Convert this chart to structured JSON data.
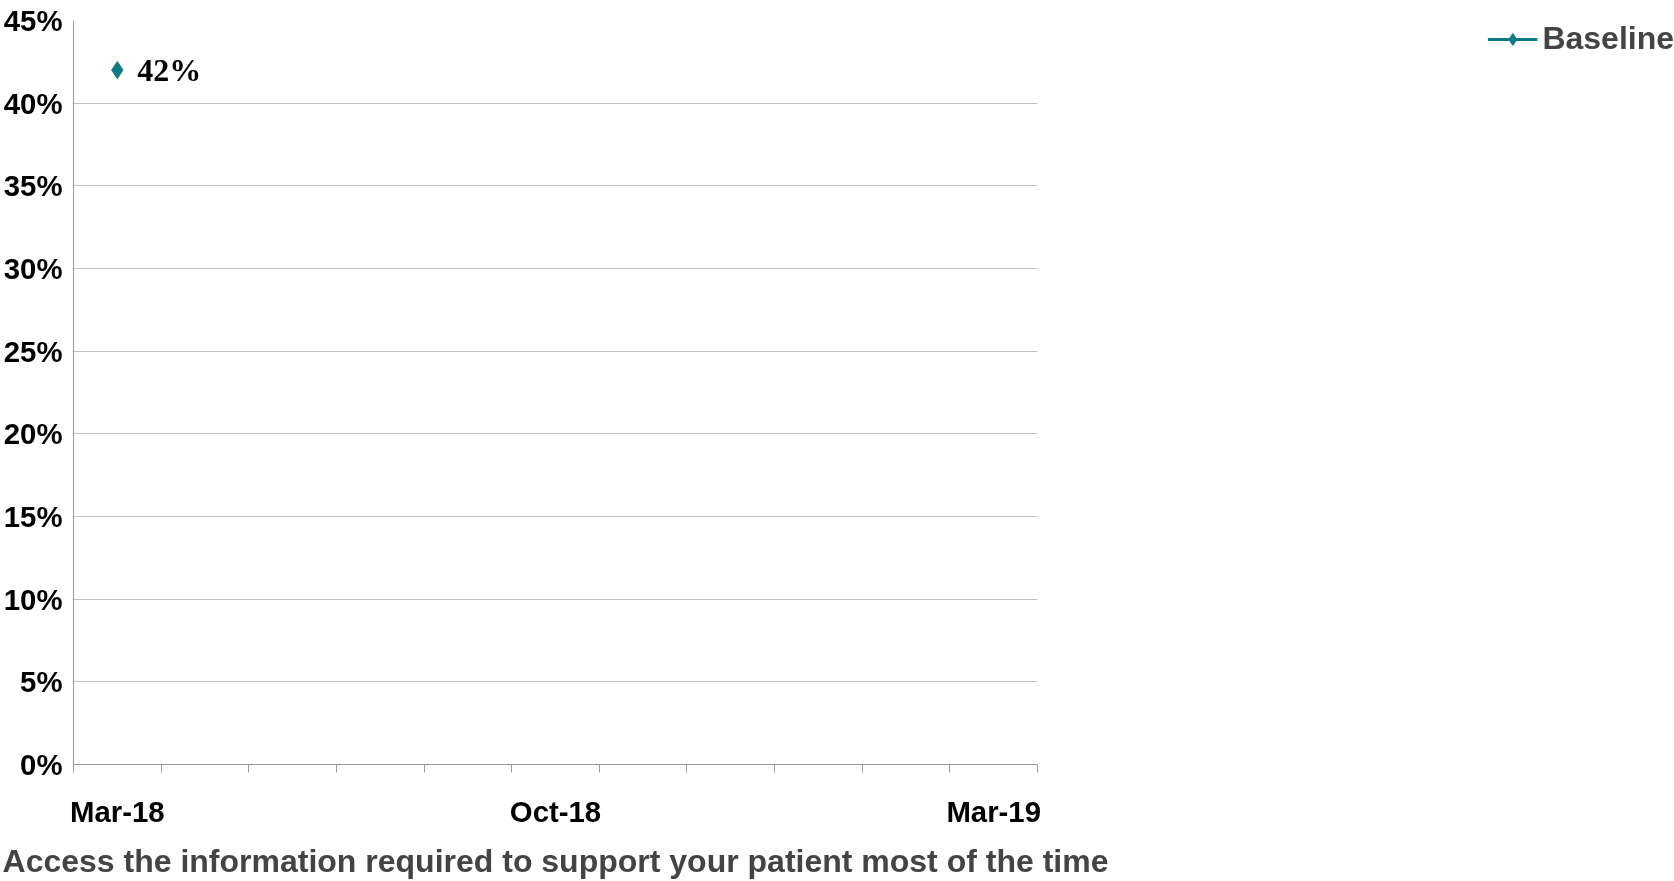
{
  "chart_data": {
    "type": "line",
    "xlabel": "Access the information required to support your patient most of the time",
    "categories": [
      "Mar-18",
      null,
      null,
      null,
      null,
      "Oct-18",
      null,
      null,
      null,
      null,
      "Mar-19"
    ],
    "series": [
      {
        "name": "Baseline",
        "color": "#0e7c86",
        "values": [
          42,
          null,
          null,
          null,
          null,
          null,
          null,
          null,
          null,
          null,
          null
        ],
        "value_labels": [
          "42%",
          null,
          null,
          null,
          null,
          null,
          null,
          null,
          null,
          null,
          null
        ]
      }
    ],
    "ylim": [
      0,
      45
    ],
    "yticks": [
      {
        "value": 0,
        "label": "0%"
      },
      {
        "value": 5,
        "label": "5%"
      },
      {
        "value": 10,
        "label": "10%"
      },
      {
        "value": 15,
        "label": "15%"
      },
      {
        "value": 20,
        "label": "20%"
      },
      {
        "value": 25,
        "label": "25%"
      },
      {
        "value": 30,
        "label": "30%"
      },
      {
        "value": 35,
        "label": "35%"
      },
      {
        "value": 40,
        "label": "40%"
      },
      {
        "value": 45,
        "label": "45%"
      }
    ],
    "grid": "y",
    "legend": "right",
    "marker": "diamond",
    "line_style": "solid"
  }
}
